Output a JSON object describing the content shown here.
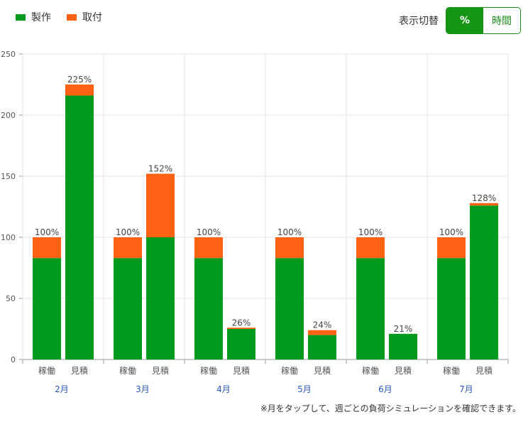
{
  "legend": {
    "items": [
      {
        "label": "製作",
        "color": "#009a1f"
      },
      {
        "label": "取付",
        "color": "#ff6213"
      }
    ]
  },
  "toggle": {
    "label": "表示切替",
    "options": [
      "%",
      "時間"
    ],
    "selected": "%"
  },
  "footnote": "※月をタップして、週ごとの負荷シミュレーションを確認できます。",
  "chart_data": {
    "type": "bar",
    "stacked": true,
    "ylim": [
      0,
      250
    ],
    "yticks": [
      0,
      50,
      100,
      150,
      200,
      250
    ],
    "grid": true,
    "months": [
      "2月",
      "3月",
      "4月",
      "5月",
      "6月",
      "7月"
    ],
    "bar_labels": [
      "稼働",
      "見積"
    ],
    "series": [
      {
        "name": "製作",
        "color": "#009a1f",
        "values": [
          [
            83,
            216
          ],
          [
            83,
            100
          ],
          [
            83,
            25
          ],
          [
            83,
            20
          ],
          [
            83,
            21
          ],
          [
            83,
            126
          ]
        ]
      },
      {
        "name": "取付",
        "color": "#ff6213",
        "values": [
          [
            17,
            9
          ],
          [
            17,
            52
          ],
          [
            17,
            1
          ],
          [
            17,
            4
          ],
          [
            17,
            0
          ],
          [
            17,
            2
          ]
        ]
      }
    ],
    "totals": [
      [
        "100%",
        "225%"
      ],
      [
        "100%",
        "152%"
      ],
      [
        "100%",
        "26%"
      ],
      [
        "100%",
        "24%"
      ],
      [
        "100%",
        "21%"
      ],
      [
        "100%",
        "128%"
      ]
    ]
  }
}
